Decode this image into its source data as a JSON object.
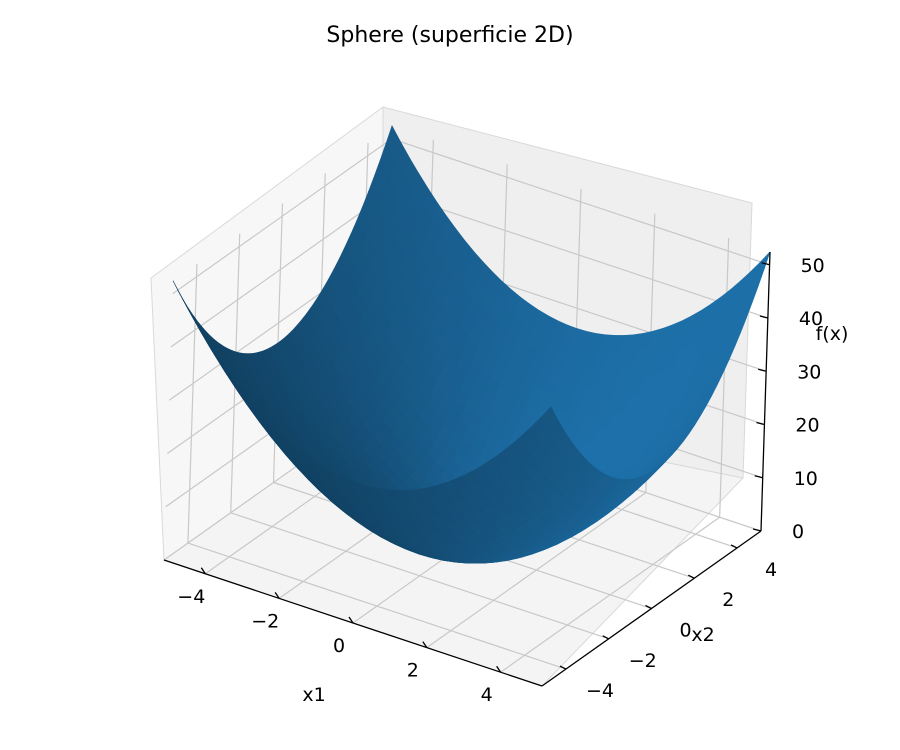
{
  "chart_data": {
    "type": "surface",
    "title": "Sphere (superficie 2D)",
    "function": "f(x) = x1^2 + x2^2",
    "xlabel": "x1",
    "ylabel": "x2",
    "zlabel": "f(x)",
    "xlim": [
      -5.12,
      5.12
    ],
    "ylim": [
      -5.12,
      5.12
    ],
    "zlim": [
      0,
      52.4
    ],
    "x_ticks": [
      -4,
      -2,
      0,
      2,
      4
    ],
    "x_tick_labels": [
      "−4",
      "−2",
      "0",
      "2",
      "4"
    ],
    "y_ticks": [
      -4,
      -2,
      0,
      2,
      4
    ],
    "y_tick_labels": [
      "−4",
      "−2",
      "0",
      "2",
      "4"
    ],
    "z_ticks": [
      0,
      10,
      20,
      30,
      40,
      50
    ],
    "z_tick_labels": [
      "0",
      "10",
      "20",
      "30",
      "40",
      "50"
    ],
    "grid": true,
    "surface_color": "#1f77b4",
    "pane_color": "#f2f2f2"
  }
}
